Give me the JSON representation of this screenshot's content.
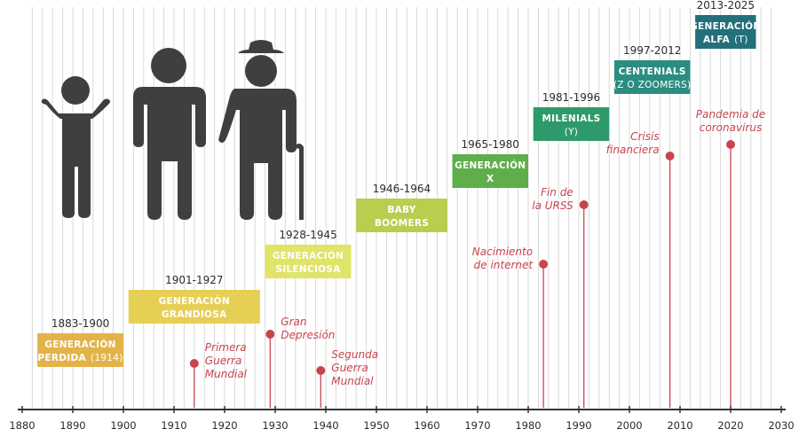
{
  "chart_data": {
    "type": "timeline",
    "x_axis": {
      "ticks": [
        "1880",
        "1890",
        "1900",
        "1910",
        "1920",
        "1930",
        "1940",
        "1950",
        "1960",
        "1970",
        "1980",
        "1990",
        "2000",
        "2010",
        "2020",
        "2030"
      ],
      "range": [
        1880,
        2030
      ],
      "grid": "vertical"
    },
    "generations": [
      {
        "name": "GENERACIÓN",
        "name2": "PERDIDA",
        "note": "(1914)",
        "years": "1883-1900",
        "start": 1883,
        "end": 1900,
        "color": "#e3b34a"
      },
      {
        "name": "GENERACIÓN",
        "name2": "GRANDIOSA",
        "note": "",
        "years": "1901-1927",
        "start": 1901,
        "end": 1927,
        "color": "#e6cf55"
      },
      {
        "name": "GENERACIÓN",
        "name2": "SILENCIOSA",
        "note": "",
        "years": "1928-1945",
        "start": 1928,
        "end": 1945,
        "color": "#e0e468"
      },
      {
        "name": "BABY",
        "name2": "BOOMERS",
        "note": "",
        "years": "1946-1964",
        "start": 1946,
        "end": 1964,
        "color": "#b7ce4f"
      },
      {
        "name": "GENERACIÓN",
        "name2": "X",
        "note": "",
        "years": "1965-1980",
        "start": 1965,
        "end": 1980,
        "color": "#5fae4b"
      },
      {
        "name": "MILENIALS",
        "name2": "",
        "note": "(Y)",
        "years": "1981-1996",
        "start": 1981,
        "end": 1996,
        "color": "#2e9a6a"
      },
      {
        "name": "CENTENIALS",
        "name2": "",
        "note": "(Z O ZOOMERS)",
        "years": "1997-2012",
        "start": 1997,
        "end": 2012,
        "color": "#2b8d80"
      },
      {
        "name": "GENERACIÓN",
        "name2": "ALFA",
        "note": "(T)",
        "years": "2013-2025",
        "start": 2013,
        "end": 2025,
        "color": "#236f7a"
      }
    ],
    "events": [
      {
        "year": 1914,
        "lines": [
          "Primera",
          "Guerra",
          "Mundial"
        ]
      },
      {
        "year": 1929,
        "lines": [
          "Gran",
          "Depresión"
        ]
      },
      {
        "year": 1939,
        "lines": [
          "Segunda",
          "Guerra",
          "Mundial"
        ]
      },
      {
        "year": 1983,
        "lines": [
          "Nacimiento",
          "de internet"
        ]
      },
      {
        "year": 1991,
        "lines": [
          "Fin de",
          "la URSS"
        ]
      },
      {
        "year": 2008,
        "lines": [
          "Crisis",
          "financiera"
        ]
      },
      {
        "year": 2020,
        "lines": [
          "Pandemia de",
          "coronavirus"
        ]
      }
    ],
    "colors": {
      "event": "#c9444e",
      "grid": "#d9d9d9",
      "axis": "#333333",
      "icon": "#3f3f3f"
    },
    "icons": [
      "child-icon",
      "adult-icon",
      "elder-with-cane-icon"
    ]
  }
}
